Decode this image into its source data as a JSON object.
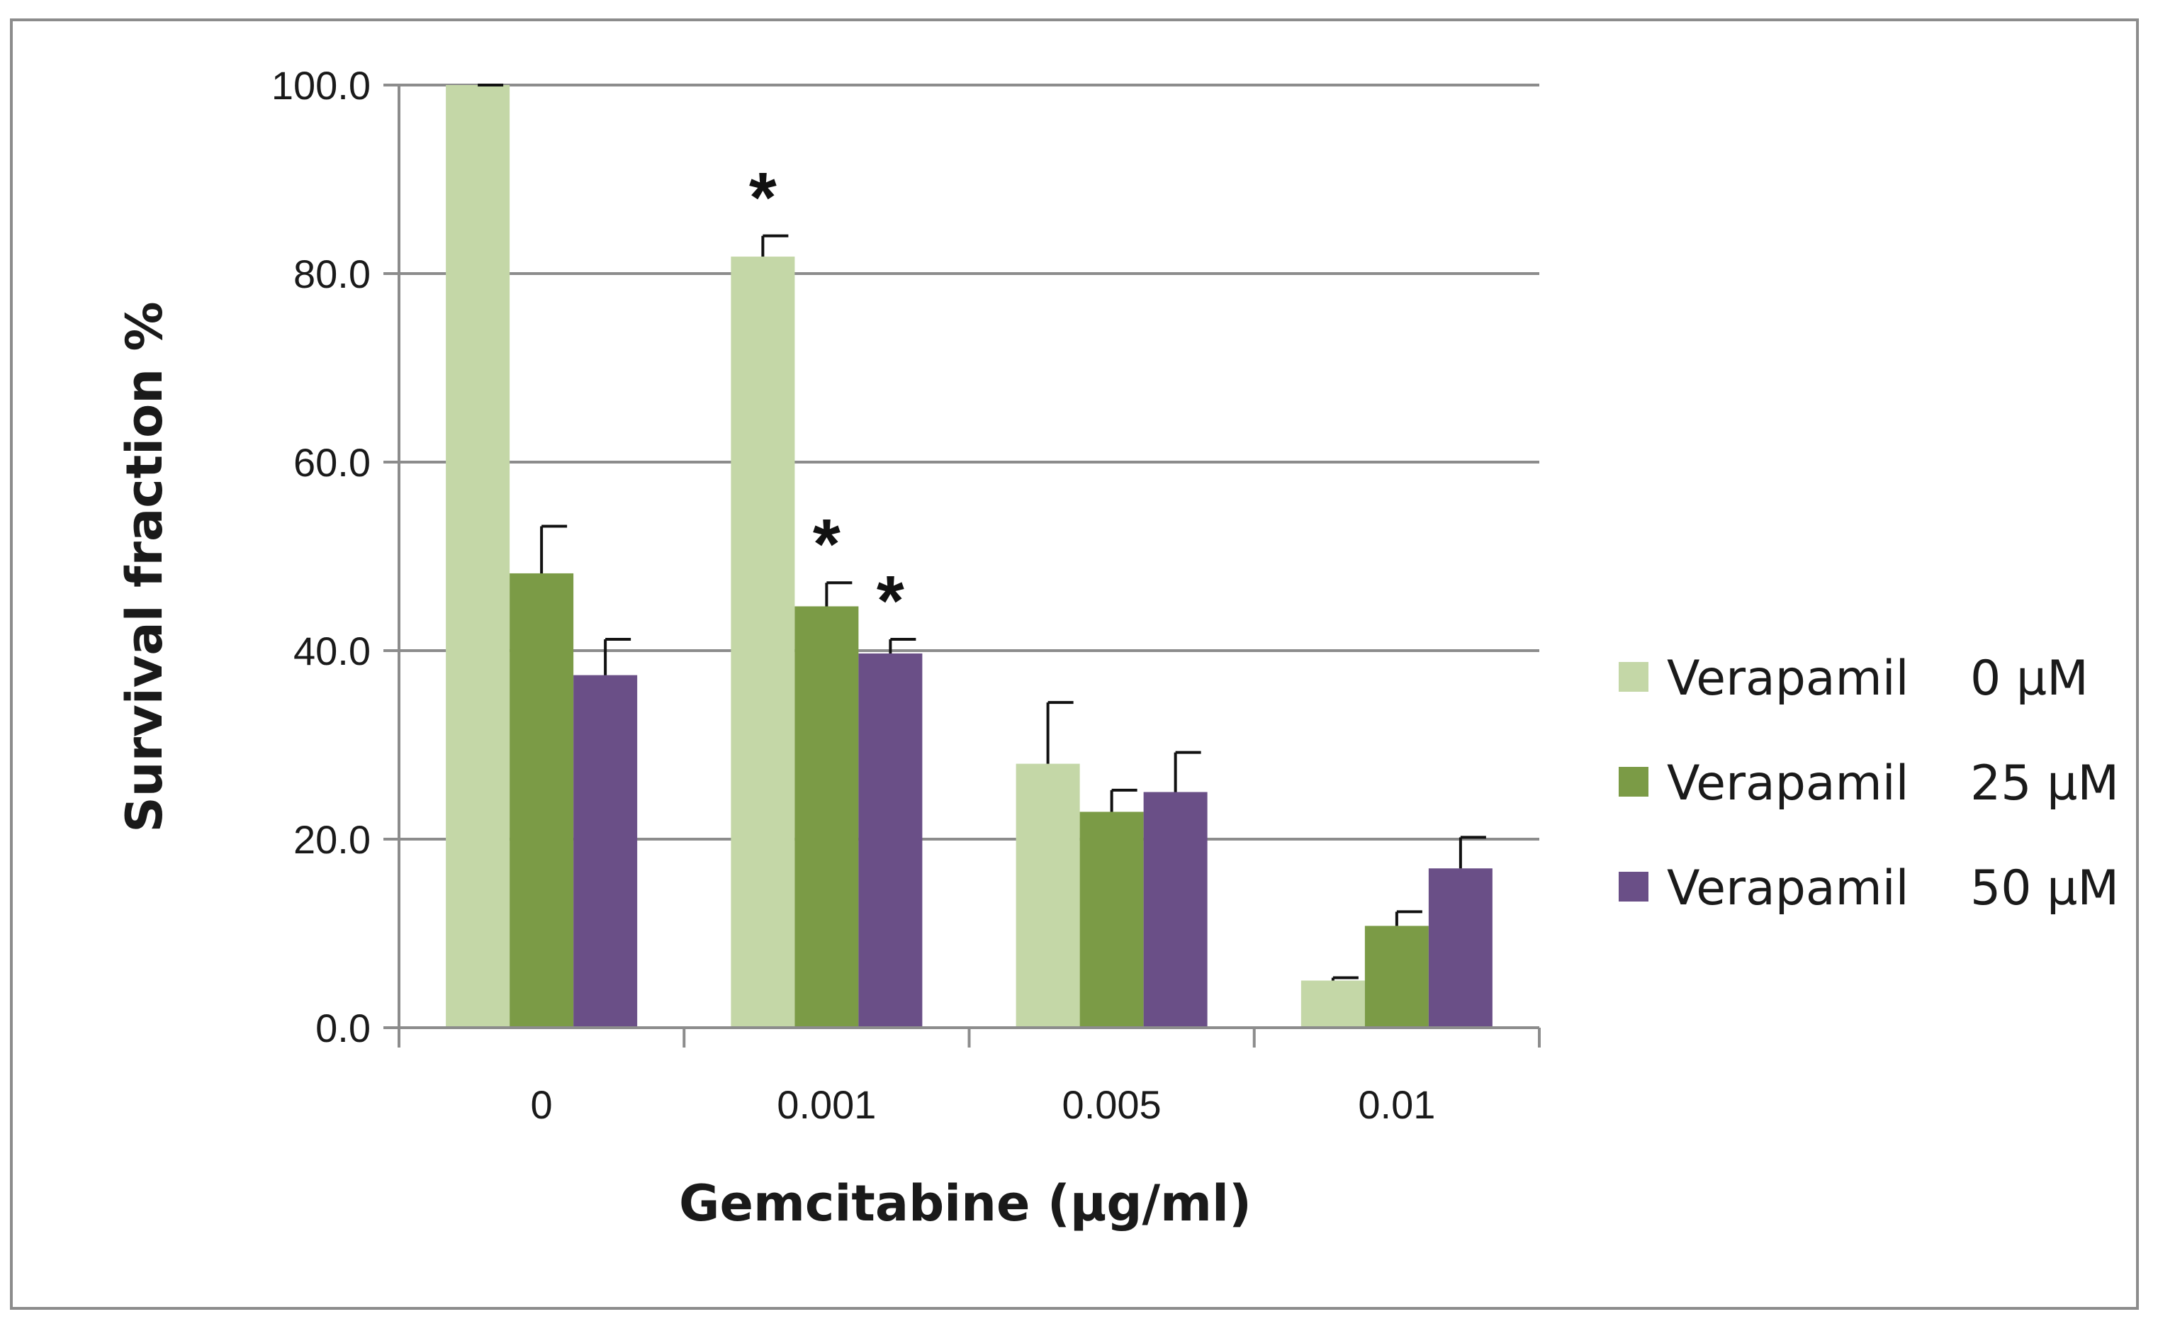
{
  "chart_data": {
    "type": "bar",
    "title": "",
    "xlabel": "Gemcitabine (µg/ml)",
    "ylabel": "Survival fraction %",
    "categories": [
      "0",
      "0.001",
      "0.005",
      "0.01"
    ],
    "ylim": [
      0,
      100
    ],
    "yticks": [
      "0.0",
      "20.0",
      "40.0",
      "60.0",
      "80.0",
      "100.0"
    ],
    "grid": true,
    "legend_position": "right",
    "series": [
      {
        "name": "Verapamil    0 µM",
        "color": "#c4d7a7",
        "values": [
          100.0,
          81.8,
          28.0,
          5.0
        ],
        "errors": [
          0.0,
          2.2,
          6.5,
          0.3
        ]
      },
      {
        "name": "Verapamil    25 µM",
        "color": "#7b9b46",
        "values": [
          48.2,
          44.7,
          22.9,
          10.8
        ],
        "errors": [
          5.0,
          2.5,
          2.3,
          1.5
        ]
      },
      {
        "name": "Verapamil    50 µM",
        "color": "#6a4f87",
        "values": [
          37.4,
          39.7,
          25.0,
          16.9
        ],
        "errors": [
          3.8,
          1.5,
          4.2,
          3.3
        ]
      }
    ],
    "annotations": [
      {
        "text": "*",
        "category": "0.001",
        "series": 0
      },
      {
        "text": "*",
        "category": "0.001",
        "series": 1
      },
      {
        "text": "*",
        "category": "0.001",
        "series": 2
      }
    ]
  }
}
